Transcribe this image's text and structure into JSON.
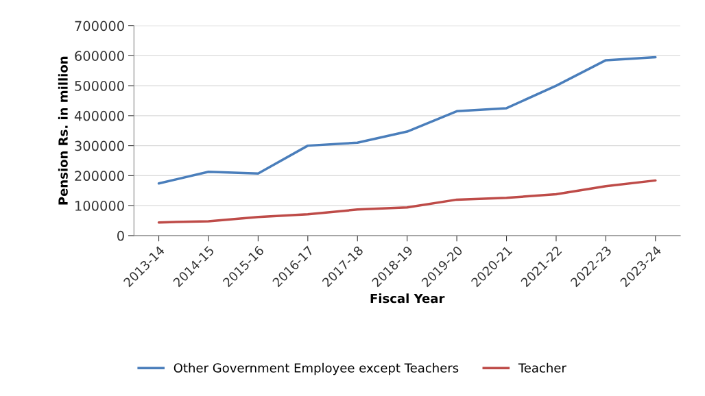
{
  "chart_data": {
    "type": "line",
    "xlabel": "Fiscal Year",
    "ylabel": "Pension Rs. in million",
    "categories": [
      "2013-14",
      "2014-15",
      "2015-16",
      "2016-17",
      "2017-18",
      "2018-19",
      "2019-20",
      "2020-21",
      "2021-22",
      "2022-23",
      "2023-24"
    ],
    "series": [
      {
        "name": "Other Government Employee except Teachers",
        "color": "#4a7ebb",
        "values": [
          174000,
          213000,
          207000,
          300000,
          310000,
          347000,
          415000,
          425000,
          500000,
          585000,
          595000
        ]
      },
      {
        "name": "Teacher",
        "color": "#be4b48",
        "values": [
          44000,
          48000,
          62000,
          71000,
          87000,
          94000,
          120000,
          126000,
          138000,
          165000,
          184000
        ]
      }
    ],
    "ylim": [
      0,
      700000
    ],
    "yticks": [
      0,
      100000,
      200000,
      300000,
      400000,
      500000,
      600000,
      700000
    ],
    "grid": "y",
    "legend": "bottom",
    "marker": "none",
    "line_style": "solid"
  }
}
